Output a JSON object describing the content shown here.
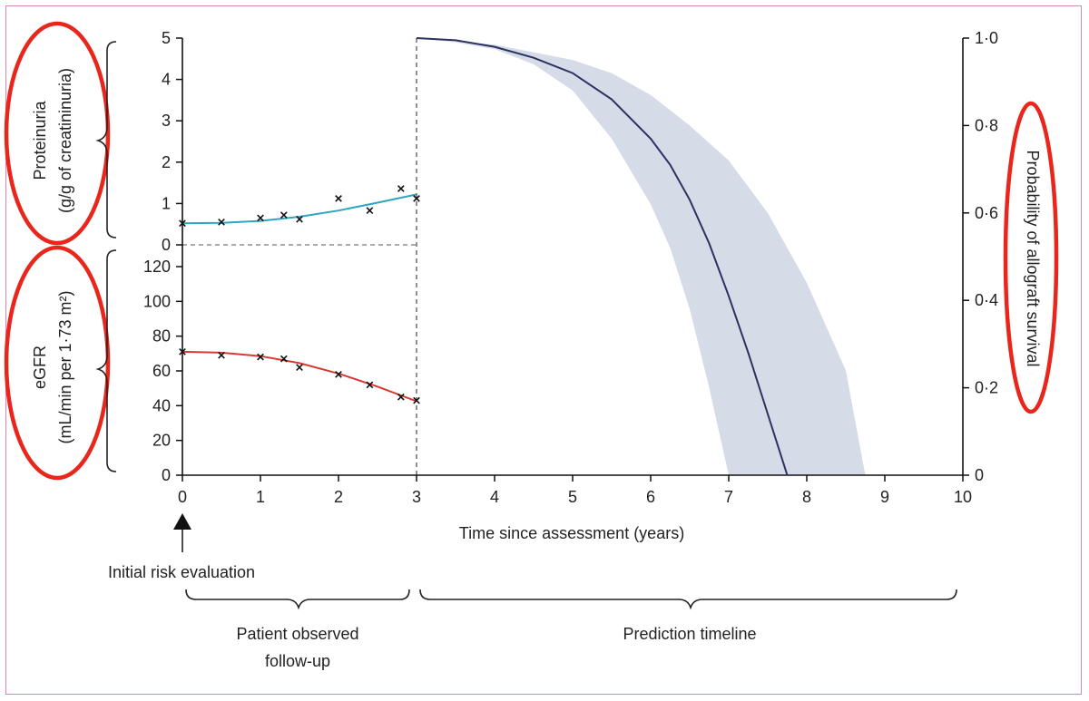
{
  "chart_data": {
    "type": "line",
    "x_axis": {
      "label": "Time since assessment (years)",
      "range": [
        0,
        10
      ],
      "ticks": [
        "0",
        "1",
        "2",
        "3",
        "4",
        "5",
        "6",
        "7",
        "8",
        "9",
        "10"
      ]
    },
    "proteinuria": {
      "ylabel_line1": "Proteinuria",
      "ylabel_line2": "(g/g of creatininuria)",
      "range": [
        0,
        5
      ],
      "ticks": [
        "0",
        "1",
        "2",
        "3",
        "4",
        "5"
      ],
      "color": "#2ea6bf",
      "observations": [
        {
          "x": 0.0,
          "y": 0.52
        },
        {
          "x": 0.5,
          "y": 0.55
        },
        {
          "x": 1.0,
          "y": 0.65
        },
        {
          "x": 1.3,
          "y": 0.72
        },
        {
          "x": 1.5,
          "y": 0.62
        },
        {
          "x": 2.0,
          "y": 1.12
        },
        {
          "x": 2.4,
          "y": 0.83
        },
        {
          "x": 2.8,
          "y": 1.36
        },
        {
          "x": 3.0,
          "y": 1.12
        }
      ],
      "fit": [
        {
          "x": 0.0,
          "y": 0.52
        },
        {
          "x": 0.5,
          "y": 0.53
        },
        {
          "x": 1.0,
          "y": 0.58
        },
        {
          "x": 1.5,
          "y": 0.68
        },
        {
          "x": 2.0,
          "y": 0.83
        },
        {
          "x": 2.5,
          "y": 1.02
        },
        {
          "x": 3.0,
          "y": 1.22
        }
      ]
    },
    "egfr": {
      "ylabel_line1": "eGFR",
      "ylabel_line2": "(mL/min per 1·73 m²)",
      "range": [
        0,
        120
      ],
      "ticks": [
        "0",
        "20",
        "40",
        "60",
        "80",
        "100",
        "120"
      ],
      "color": "#d63a32",
      "observations": [
        {
          "x": 0.0,
          "y": 71
        },
        {
          "x": 0.5,
          "y": 69
        },
        {
          "x": 1.0,
          "y": 68
        },
        {
          "x": 1.3,
          "y": 67
        },
        {
          "x": 1.5,
          "y": 62
        },
        {
          "x": 2.0,
          "y": 58
        },
        {
          "x": 2.4,
          "y": 52
        },
        {
          "x": 2.8,
          "y": 45
        },
        {
          "x": 3.0,
          "y": 43
        }
      ],
      "fit": [
        {
          "x": 0.0,
          "y": 71
        },
        {
          "x": 0.5,
          "y": 70.5
        },
        {
          "x": 1.0,
          "y": 68.5
        },
        {
          "x": 1.5,
          "y": 64.5
        },
        {
          "x": 2.0,
          "y": 58.5
        },
        {
          "x": 2.5,
          "y": 51
        },
        {
          "x": 3.0,
          "y": 42.5
        }
      ]
    },
    "survival": {
      "ylabel": "Probability of allograft survival",
      "range": [
        0,
        1
      ],
      "ticks": [
        "0",
        "0·2",
        "0·4",
        "0·6",
        "0·8",
        "1·0"
      ],
      "line_color": "#2c3260",
      "band_color": "#d6dbe8",
      "curve": [
        {
          "x": 3.0,
          "y": 1.0
        },
        {
          "x": 3.5,
          "y": 0.995
        },
        {
          "x": 4.0,
          "y": 0.98
        },
        {
          "x": 4.5,
          "y": 0.955
        },
        {
          "x": 5.0,
          "y": 0.92
        },
        {
          "x": 5.5,
          "y": 0.86
        },
        {
          "x": 6.0,
          "y": 0.77
        },
        {
          "x": 6.25,
          "y": 0.71
        },
        {
          "x": 6.5,
          "y": 0.63
        },
        {
          "x": 6.75,
          "y": 0.53
        },
        {
          "x": 7.0,
          "y": 0.41
        },
        {
          "x": 7.25,
          "y": 0.28
        },
        {
          "x": 7.5,
          "y": 0.14
        },
        {
          "x": 7.75,
          "y": 0.0
        }
      ],
      "band_lower": [
        {
          "x": 3.0,
          "y": 1.0
        },
        {
          "x": 3.5,
          "y": 0.99
        },
        {
          "x": 4.0,
          "y": 0.975
        },
        {
          "x": 4.5,
          "y": 0.94
        },
        {
          "x": 5.0,
          "y": 0.88
        },
        {
          "x": 5.5,
          "y": 0.77
        },
        {
          "x": 6.0,
          "y": 0.62
        },
        {
          "x": 6.25,
          "y": 0.52
        },
        {
          "x": 6.5,
          "y": 0.38
        },
        {
          "x": 6.75,
          "y": 0.2
        },
        {
          "x": 7.0,
          "y": 0.0
        }
      ],
      "band_upper": [
        {
          "x": 3.0,
          "y": 1.0
        },
        {
          "x": 4.0,
          "y": 0.985
        },
        {
          "x": 5.0,
          "y": 0.95
        },
        {
          "x": 5.5,
          "y": 0.92
        },
        {
          "x": 6.0,
          "y": 0.87
        },
        {
          "x": 6.5,
          "y": 0.8
        },
        {
          "x": 7.0,
          "y": 0.72
        },
        {
          "x": 7.5,
          "y": 0.6
        },
        {
          "x": 8.0,
          "y": 0.44
        },
        {
          "x": 8.25,
          "y": 0.34
        },
        {
          "x": 8.5,
          "y": 0.24
        },
        {
          "x": 8.75,
          "y": 0.0
        }
      ]
    },
    "annotations": {
      "initial": "Initial risk evaluation",
      "observed_line1": "Patient observed",
      "observed_line2": "follow-up",
      "prediction": "Prediction timeline"
    },
    "highlight_color": "#e8261c"
  }
}
